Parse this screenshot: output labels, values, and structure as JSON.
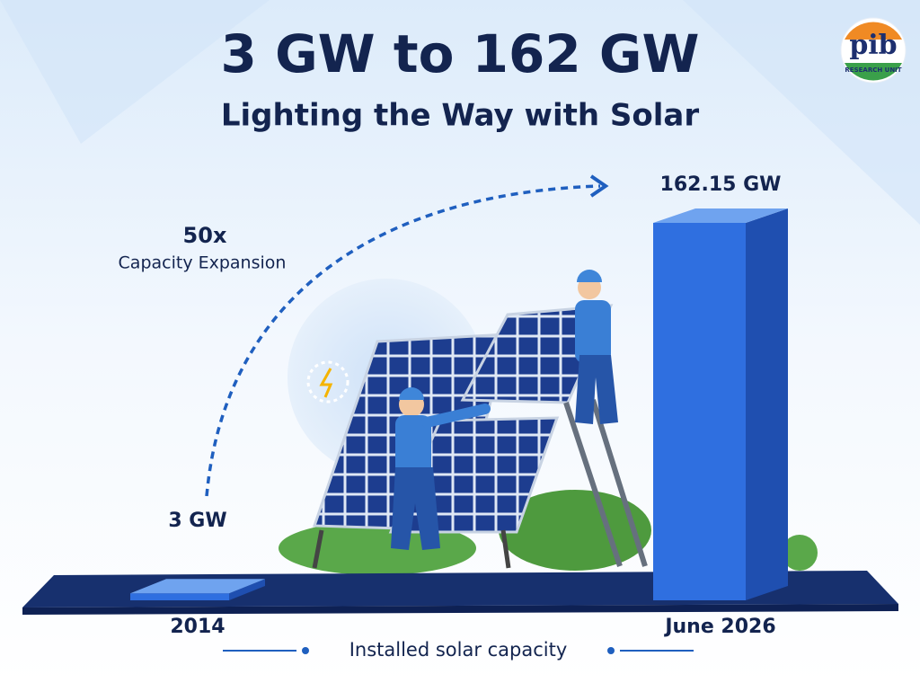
{
  "chart_data": {
    "type": "bar",
    "title": "3 GW to 162 GW",
    "subtitle": "Lighting the Way with Solar",
    "annotation": "50x",
    "annotation_label": "Capacity Expansion",
    "x_label": "Installed solar capacity",
    "categories": [
      "2014",
      "June 2026"
    ],
    "values": [
      3,
      162.15
    ],
    "value_labels": [
      "3 GW",
      "162.15 GW"
    ],
    "color": "#2f6fe0"
  },
  "logo": {
    "text": "pib",
    "subtext": "RESEARCH UNIT"
  }
}
